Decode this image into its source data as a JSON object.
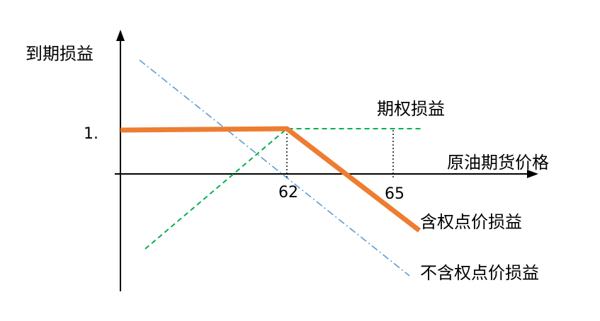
{
  "labels": {
    "y_axis": "到期损益",
    "x_axis": "原油期货价格",
    "y_tick": "1.",
    "x_tick_strike": "62",
    "x_tick_65": "65",
    "option_payoff": "期权损益",
    "hedged_payoff": "含权点价损益",
    "unhedged_payoff": "不含权点价损益"
  },
  "colors": {
    "axis": "#000000",
    "hedged": "#ed7d31",
    "option": "#00b050",
    "unhedged": "#5b9bd5",
    "guide": "#000000"
  },
  "lines": {
    "hedged": "solid thick, flat then falling after strike",
    "option": "dashed, rising then flat after strike",
    "unhedged": "dash-dot, falling straight line"
  }
}
